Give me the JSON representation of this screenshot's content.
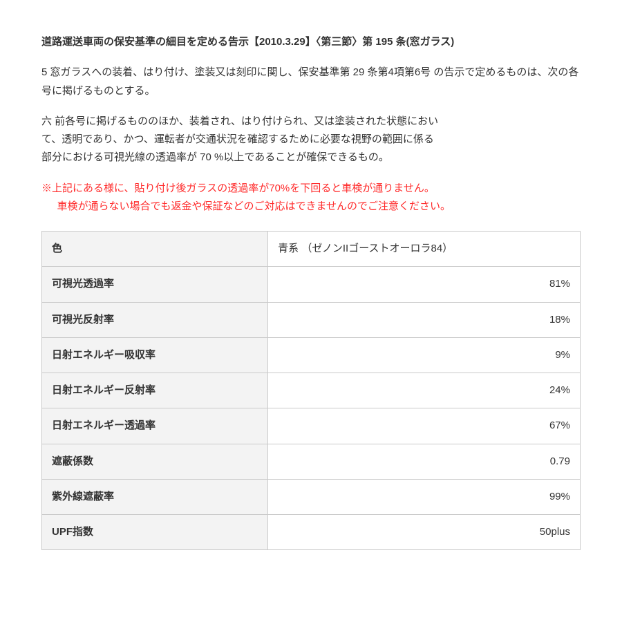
{
  "title": "道路運送車両の保安基準の細目を定める告示【2010.3.29】〈第三節〉第 195 条(窓ガラス)",
  "para1": "5 窓ガラスへの装着、はり付け、塗装又は刻印に関し、保安基準第 29 条第4項第6号 の告示で定めるものは、次の各号に掲げるものとする。",
  "para2_l1": "六 前各号に掲げるもののほか、装着され、はり付けられ、又は塗装された状態におい",
  "para2_l2": "て、透明であり、かつ、運転者が交通状況を確認するために必要な視野の範囲に係る",
  "para2_l3": "部分における可視光線の透過率が 70 %以上であることが確保できるもの。",
  "warning_l1": "※上記にある様に、貼り付け後ガラスの透過率が70%を下回ると車検が通りません。",
  "warning_l2": "車検が通らない場合でも返金や保証などのご対応はできませんのでご注意ください。",
  "table": {
    "header_label": "色",
    "header_value": "青系 （ゼノンIIゴーストオーロラ84）",
    "rows": [
      {
        "label": "可視光透過率",
        "value": "81%"
      },
      {
        "label": "可視光反射率",
        "value": "18%"
      },
      {
        "label": "日射エネルギー吸収率",
        "value": "9%"
      },
      {
        "label": "日射エネルギー反射率",
        "value": "24%"
      },
      {
        "label": "日射エネルギー透過率",
        "value": "67%"
      },
      {
        "label": "遮蔽係数",
        "value": "0.79"
      },
      {
        "label": "紫外線遮蔽率",
        "value": "99%"
      },
      {
        "label": "UPF指数",
        "value": "50plus"
      }
    ]
  },
  "colors": {
    "text": "#333333",
    "warning": "#ff2a2a",
    "table_header_bg": "#f3f3f3",
    "table_border": "#c9c9c9",
    "page_bg": "#ffffff"
  }
}
